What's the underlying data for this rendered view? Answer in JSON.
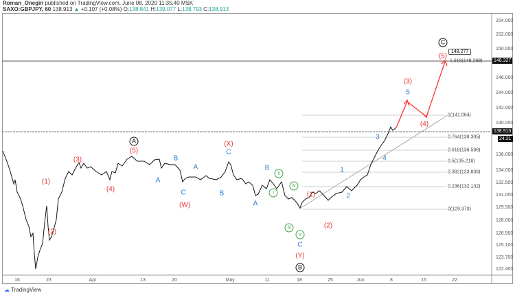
{
  "header": {
    "author": "Roman_Onegin",
    "published": "published on TradingView.com, June 08, 2020 11:35:40 MSK",
    "symbol": "SAXO:GBPJPY, 60",
    "last": "138.913",
    "change": "+0.107 (+0.08%)",
    "o_label": "O:",
    "o": "138.841",
    "h_label": "H:",
    "h": "139.077",
    "l_label": "L:",
    "l": "138.793",
    "c_label": "C:",
    "c": "138.913"
  },
  "y_axis": [
    "154.000",
    "152.000",
    "150.000",
    "146.000",
    "144.000",
    "142.000",
    "140.000",
    "136.000",
    "134.000",
    "132.500",
    "131.000",
    "129.500",
    "128.000",
    "126.500",
    "125.100",
    "123.700",
    "122.400"
  ],
  "price_boxes": {
    "target": "148.327",
    "current": "138.913",
    "countdown": "24:21"
  },
  "x_axis": [
    "16",
    "23",
    "Apr",
    "13",
    "20",
    "May",
    "11",
    "18",
    "25",
    "Jun",
    "8",
    "15",
    "22"
  ],
  "fib": [
    "1.618(148.289)",
    "1(141.064)",
    "0.764(138.305)",
    "0.618(136.598)",
    "0.5(135.218)",
    "0.382(133.839)",
    "0.236(132.132)",
    "0(129.373)"
  ],
  "target_tag": "148.277",
  "waves": {
    "red": [
      "(1)",
      "(2)",
      "(3)",
      "(4)",
      "(5)",
      "(W)",
      "(X)",
      "(1)",
      "(2)",
      "(Y)",
      "(3)",
      "(4)",
      "(5)"
    ],
    "blue": [
      "A",
      "B",
      "C",
      "A",
      "B",
      "C",
      "A",
      "B",
      "C",
      "1",
      "2",
      "3",
      "4",
      "5"
    ],
    "green": [
      "i",
      "ii",
      "iii",
      "iv",
      "v"
    ],
    "circled": [
      "A",
      "B",
      "C"
    ]
  },
  "colors": {
    "red": "#e53935",
    "blue": "#2a7fd4",
    "green": "#43a047"
  },
  "footer": {
    "brand": "TradingView"
  }
}
